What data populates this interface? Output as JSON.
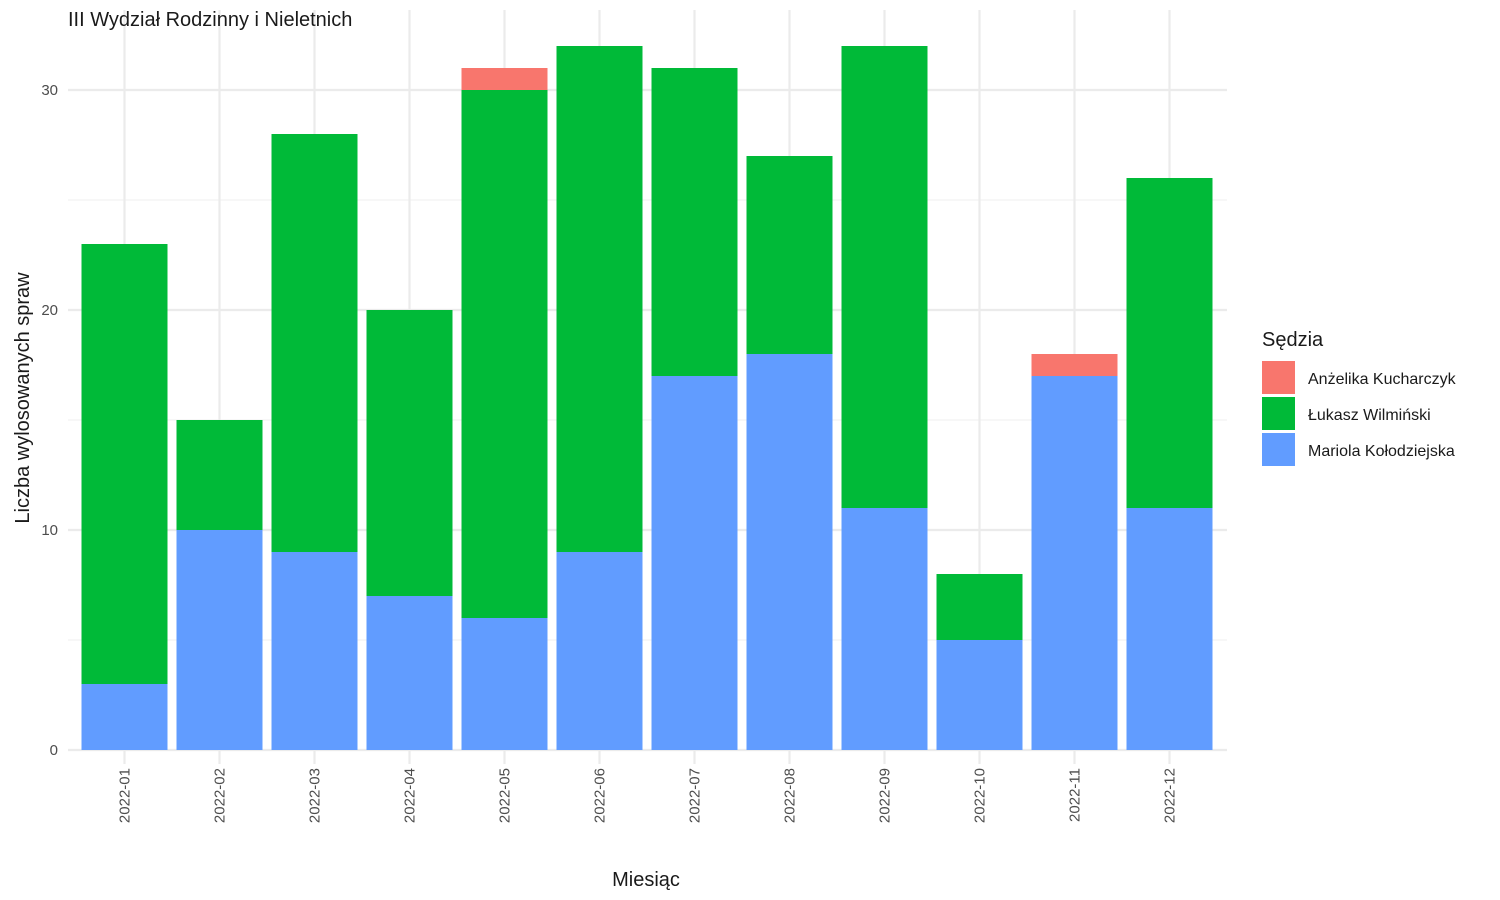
{
  "chart_data": {
    "type": "bar",
    "stacked": true,
    "title": "III Wydział Rodzinny i Nieletnich",
    "xlabel": "Miesiąc",
    "ylabel": "Liczba wylosowanych spraw",
    "categories": [
      "2022-01",
      "2022-02",
      "2022-03",
      "2022-04",
      "2022-05",
      "2022-06",
      "2022-07",
      "2022-08",
      "2022-09",
      "2022-10",
      "2022-11",
      "2022-12"
    ],
    "series": [
      {
        "name": "Mariola Kołodziejska",
        "color": "#619CFF",
        "values": [
          3,
          10,
          9,
          7,
          6,
          9,
          17,
          18,
          11,
          5,
          17,
          11
        ]
      },
      {
        "name": "Łukasz Wilmiński",
        "color": "#00BA38",
        "values": [
          20,
          5,
          19,
          13,
          24,
          23,
          14,
          9,
          21,
          3,
          0,
          15
        ]
      },
      {
        "name": "Anżelika Kucharczyk",
        "color": "#F8766D",
        "values": [
          0,
          0,
          0,
          0,
          1,
          0,
          0,
          0,
          0,
          0,
          1,
          0
        ]
      }
    ],
    "ylim": [
      0,
      32
    ],
    "yticks": [
      0,
      10,
      20,
      30
    ],
    "grid": true,
    "legend": {
      "title": "Sędzia",
      "position": "right",
      "order": [
        "Anżelika Kucharczyk",
        "Łukasz Wilmiński",
        "Mariola Kołodziejska"
      ]
    }
  }
}
